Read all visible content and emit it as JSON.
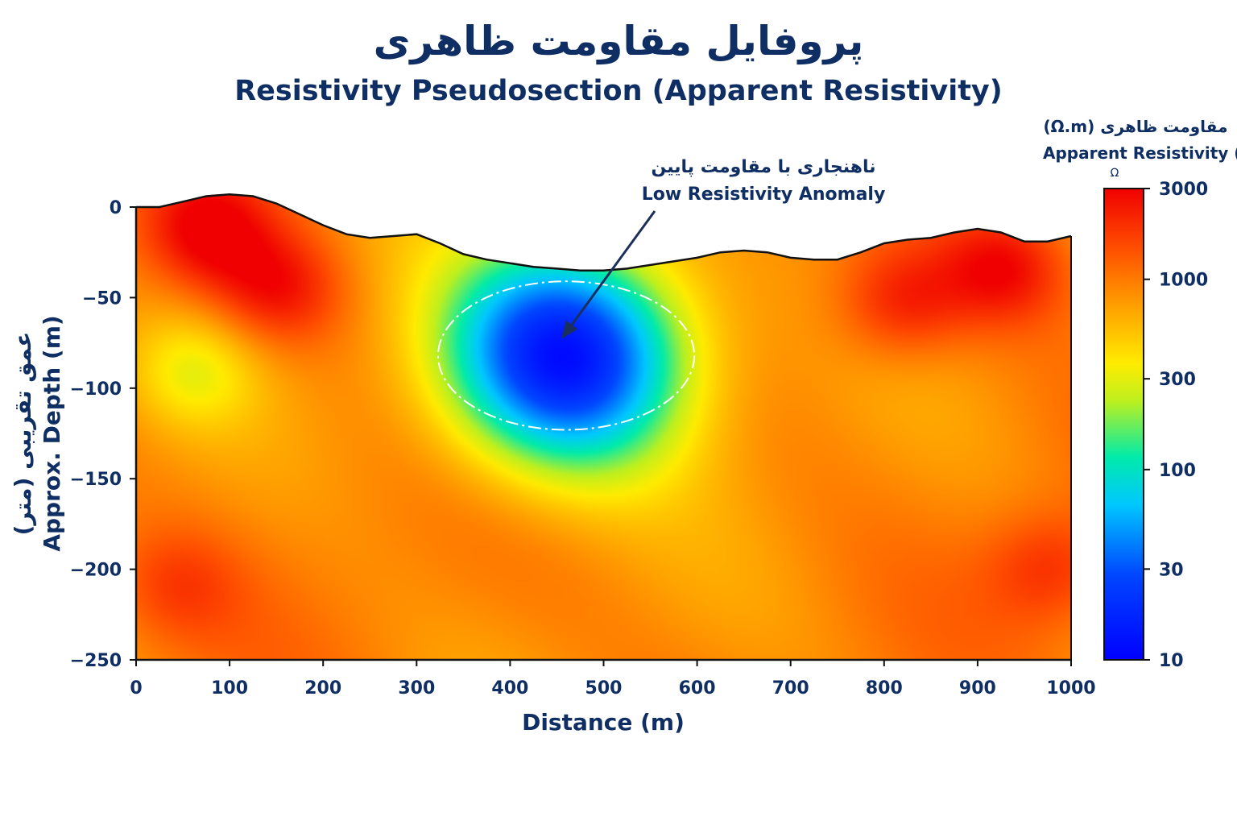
{
  "title_fa": "پروفایل مقاومت ظاهری",
  "title_en": "Resistivity Pseudosection (Apparent Resistivity)",
  "colors": {
    "text": "#0f2e63",
    "annotation_arrow": "#1a2f5c",
    "anomaly_outline": "#ffffff"
  },
  "chart_data": {
    "type": "heatmap",
    "xlabel": "Distance (m)",
    "ylabel_fa": "عمق تقریبی (متر)",
    "ylabel_en": "Approx. Depth (m)",
    "xlim": [
      0,
      1000
    ],
    "ylim": [
      -250,
      0
    ],
    "x_ticks": [
      "0",
      "100",
      "200",
      "300",
      "400",
      "500",
      "600",
      "700",
      "800",
      "900",
      "1000"
    ],
    "y_ticks": [
      "0",
      "-50",
      "-100",
      "-150",
      "-200",
      "-250"
    ],
    "colorbar": {
      "title_fa": "مقاومت ظاهری (Ω.m)",
      "title_en": "Apparent Resistivity (",
      "unit_symbol": "Ω",
      "scale": "log",
      "range": [
        10,
        3000
      ],
      "ticks": [
        "3000",
        "1000",
        "300",
        "100",
        "30",
        "10"
      ]
    },
    "surface_profile": {
      "x": [
        0,
        25,
        50,
        75,
        100,
        125,
        150,
        175,
        200,
        225,
        250,
        275,
        300,
        325,
        350,
        375,
        400,
        425,
        450,
        475,
        500,
        525,
        550,
        575,
        600,
        625,
        650,
        675,
        700,
        725,
        750,
        775,
        800,
        825,
        850,
        875,
        900,
        925,
        950,
        975,
        1000
      ],
      "depth": [
        0,
        0,
        3,
        6,
        7,
        6,
        2,
        -4,
        -10,
        -15,
        -17,
        -16,
        -15,
        -20,
        -26,
        -29,
        -31,
        -33,
        -34,
        -35,
        -35,
        -34,
        -32,
        -30,
        -28,
        -25,
        -24,
        -25,
        -28,
        -29,
        -29,
        -25,
        -20,
        -18,
        -17,
        -14,
        -12,
        -14,
        -19,
        -19,
        -16
      ]
    },
    "anomalies": [
      {
        "x": 460,
        "depth": -82,
        "resistivity": 12
      },
      {
        "x": 75,
        "depth": -12,
        "resistivity": 2800
      },
      {
        "x": 150,
        "depth": -45,
        "resistivity": 2400
      },
      {
        "x": 820,
        "depth": -52,
        "resistivity": 2400
      },
      {
        "x": 930,
        "depth": -33,
        "resistivity": 2800
      },
      {
        "x": 60,
        "depth": -90,
        "resistivity": 400
      },
      {
        "x": 40,
        "depth": -210,
        "resistivity": 1600
      },
      {
        "x": 980,
        "depth": -200,
        "resistivity": 1900
      }
    ],
    "background_resistivity": 900,
    "annotation": {
      "label_fa": "ناهنجاری با مقاومت پایین",
      "label_en": "Low Resistivity Anomaly",
      "target_x": 460,
      "target_depth": -72,
      "outline": {
        "cx": 460,
        "cy": -82,
        "rx": 137,
        "ry": 41
      }
    }
  }
}
